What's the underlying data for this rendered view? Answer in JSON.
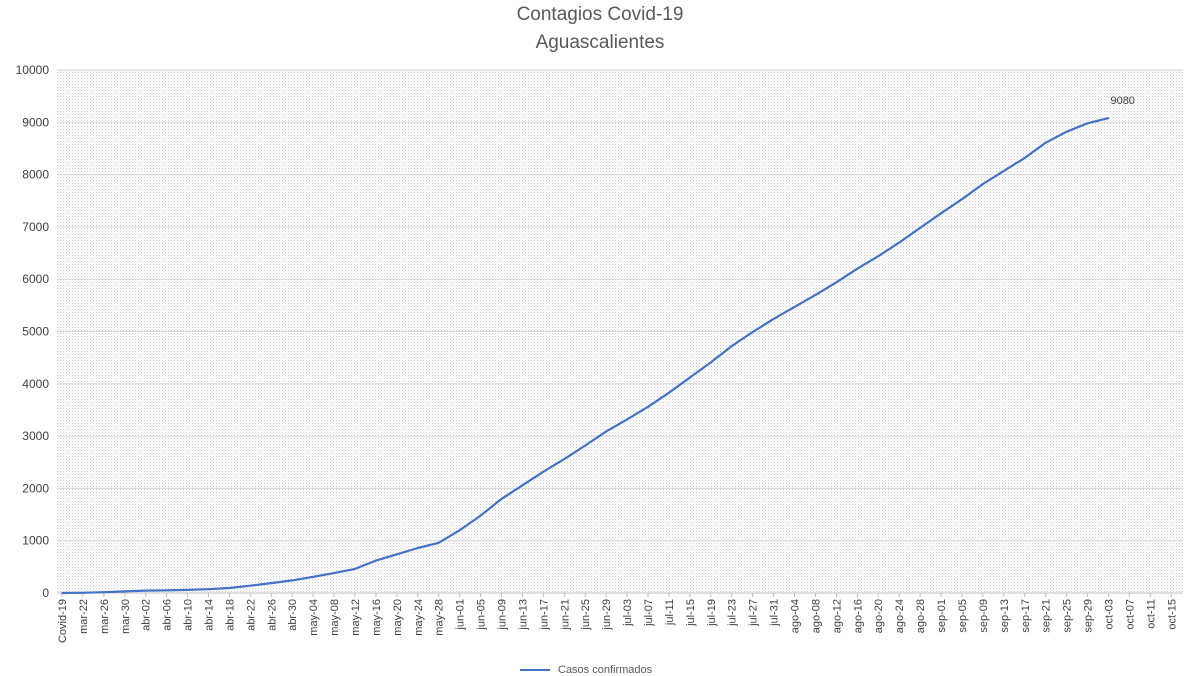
{
  "chart_data": {
    "type": "line",
    "title": "Contagios Covid-19",
    "subtitle": "Aguascalientes",
    "ylim": [
      0,
      10000
    ],
    "y_ticks": [
      0,
      1000,
      2000,
      3000,
      4000,
      5000,
      6000,
      7000,
      8000,
      9000,
      10000
    ],
    "x_tick_labels": [
      "Covid-19",
      "mar-22",
      "mar-26",
      "mar-30",
      "abr-02",
      "abr-06",
      "abr-10",
      "abr-14",
      "abr-18",
      "abr-22",
      "abr-26",
      "abr-30",
      "may-04",
      "may-08",
      "may-12",
      "may-16",
      "may-20",
      "may-24",
      "may-28",
      "jun-01",
      "jun-05",
      "jun-09",
      "jun-13",
      "jun-17",
      "jun-21",
      "jun-25",
      "jun-29",
      "jul-03",
      "jul-07",
      "jul-11",
      "jul-15",
      "jul-19",
      "jul-23",
      "jul-27",
      "jul-31",
      "ago-04",
      "ago-08",
      "ago-12",
      "ago-16",
      "ago-20",
      "ago-24",
      "ago-28",
      "sep-01",
      "sep-05",
      "sep-09",
      "sep-13",
      "sep-17",
      "sep-21",
      "sep-25",
      "sep-29",
      "oct-03",
      "oct-07",
      "oct-11",
      "oct-15"
    ],
    "grid": true,
    "legend_position": "bottom",
    "series": [
      {
        "name": "Casos confirmados",
        "color": "#4472c4",
        "tick_index": [
          0,
          1,
          2,
          3,
          4,
          5,
          6,
          7,
          8,
          9,
          10,
          11,
          12,
          13,
          14,
          15,
          16,
          17,
          18,
          19,
          20,
          21,
          22,
          23,
          24,
          25,
          26,
          27,
          28,
          29,
          30,
          31,
          32,
          33,
          34,
          35,
          36,
          37,
          38,
          39,
          40,
          41,
          42,
          43,
          44,
          45,
          46,
          47,
          48,
          49,
          50
        ],
        "values": [
          0,
          4,
          15,
          30,
          45,
          52,
          60,
          72,
          95,
          140,
          190,
          240,
          310,
          380,
          460,
          620,
          740,
          860,
          960,
          1200,
          1480,
          1800,
          2060,
          2320,
          2560,
          2820,
          3090,
          3320,
          3560,
          3830,
          4120,
          4410,
          4720,
          4990,
          5240,
          5470,
          5700,
          5940,
          6200,
          6440,
          6700,
          6980,
          7260,
          7530,
          7820,
          8070,
          8320,
          8610,
          8820,
          8980,
          9080
        ],
        "end_label": "9080"
      }
    ]
  }
}
